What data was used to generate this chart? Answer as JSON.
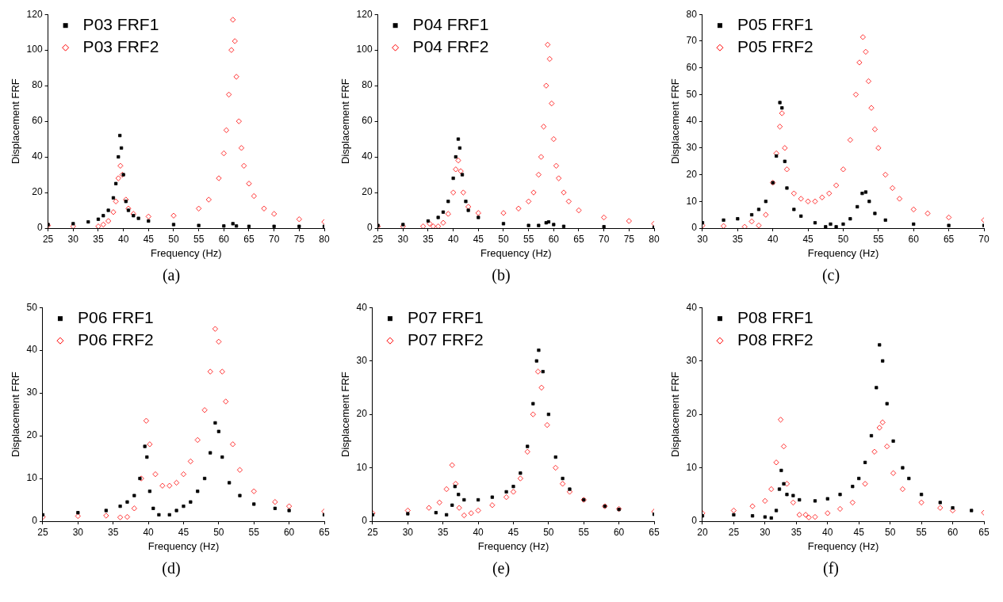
{
  "chart_data": [
    {
      "type": "scatter",
      "xlabel": "Frequency (Hz)",
      "ylabel": "Displacement FRF",
      "annotations": [
        "(a)"
      ],
      "xlim": [
        25,
        80
      ],
      "xticks": [
        25,
        30,
        35,
        40,
        45,
        50,
        55,
        60,
        65,
        70,
        75,
        80
      ],
      "ylim": [
        0,
        120
      ],
      "yticks": [
        0,
        20,
        40,
        60,
        80,
        100,
        120
      ],
      "legend": "top left",
      "grid": false,
      "series": [
        {
          "name": "P03 FRF1",
          "color": "#000000",
          "marker": "square",
          "x": [
            25,
            30,
            33,
            35,
            36,
            37,
            38,
            38.5,
            39,
            39.3,
            39.6,
            40,
            40.5,
            41,
            42,
            43,
            45,
            50,
            55,
            60,
            61.8,
            62.5,
            65,
            70,
            75,
            80
          ],
          "values": [
            2,
            2.5,
            3.5,
            5,
            7,
            10,
            17,
            25,
            40,
            52,
            45,
            30,
            15,
            10,
            7,
            5.5,
            4,
            2,
            1.5,
            1.2,
            2.5,
            1.2,
            1,
            1,
            1,
            1
          ]
        },
        {
          "name": "P03 FRF2",
          "color": "#ff0000",
          "marker": "diamond",
          "x": [
            25,
            30,
            35,
            36,
            37,
            38,
            38.5,
            39,
            39.4,
            39.8,
            40.5,
            41,
            42,
            45,
            50,
            55,
            57,
            59,
            60,
            60.5,
            61,
            61.5,
            61.8,
            62.2,
            62.5,
            63,
            63.5,
            64,
            65,
            66,
            68,
            70,
            75,
            80
          ],
          "values": [
            1.5,
            1,
            1,
            2,
            4,
            9,
            15,
            28,
            35,
            30,
            16,
            11,
            8,
            6.5,
            7,
            11,
            16,
            28,
            42,
            55,
            75,
            100,
            117,
            105,
            85,
            60,
            45,
            35,
            25,
            18,
            11,
            8,
            5,
            3.5
          ]
        }
      ]
    },
    {
      "type": "scatter",
      "xlabel": "Frequency (Hz)",
      "ylabel": "Displacement FRF",
      "annotations": [
        "(b)"
      ],
      "xlim": [
        25,
        80
      ],
      "xticks": [
        25,
        30,
        35,
        40,
        45,
        50,
        55,
        60,
        65,
        70,
        75,
        80
      ],
      "ylim": [
        0,
        120
      ],
      "yticks": [
        0,
        20,
        40,
        60,
        80,
        100,
        120
      ],
      "legend": "top left",
      "grid": false,
      "series": [
        {
          "name": "P04 FRF1",
          "color": "#000000",
          "marker": "square",
          "x": [
            25,
            30,
            35,
            37,
            38,
            39,
            40,
            40.5,
            41,
            41.3,
            41.8,
            42.5,
            43,
            45,
            50,
            55,
            57,
            58.5,
            59,
            60,
            62,
            70,
            80
          ],
          "values": [
            1.5,
            2,
            4,
            6,
            9,
            15,
            28,
            40,
            50,
            45,
            30,
            15,
            10,
            6,
            2.5,
            1.5,
            1.5,
            3,
            3.5,
            2,
            1,
            0.8,
            0.5
          ]
        },
        {
          "name": "P04 FRF2",
          "color": "#ff0000",
          "marker": "diamond",
          "x": [
            25,
            30,
            34,
            35.3,
            36,
            37,
            38,
            39,
            40,
            40.5,
            41,
            41.5,
            42,
            43,
            45,
            50,
            53,
            55,
            56,
            57,
            57.5,
            58,
            58.5,
            58.8,
            59.2,
            59.6,
            60,
            60.5,
            61,
            62,
            63,
            65,
            70,
            75,
            80
          ],
          "values": [
            1,
            1,
            1,
            2.5,
            1,
            1,
            3,
            8,
            20,
            33,
            38,
            32,
            20,
            12,
            8.5,
            8.5,
            11,
            15,
            20,
            30,
            40,
            57,
            80,
            103,
            95,
            70,
            50,
            35,
            28,
            20,
            15,
            10,
            6,
            4,
            2.5
          ]
        }
      ]
    },
    {
      "type": "scatter",
      "xlabel": "Frequency (Hz)",
      "ylabel": "Displacement FRF",
      "annotations": [
        "(c)"
      ],
      "xlim": [
        30,
        70
      ],
      "xticks": [
        30,
        35,
        40,
        45,
        50,
        55,
        60,
        65,
        70
      ],
      "ylim": [
        0,
        80
      ],
      "yticks": [
        0,
        10,
        20,
        30,
        40,
        50,
        60,
        70,
        80
      ],
      "legend": "top left",
      "grid": false,
      "series": [
        {
          "name": "P05 FRF1",
          "color": "#000000",
          "marker": "square",
          "x": [
            30,
            33,
            35,
            37,
            38,
            39,
            40,
            40.5,
            41,
            41.3,
            41.7,
            42,
            43,
            44,
            46,
            47.5,
            48.2,
            49,
            50,
            51,
            52,
            52.7,
            53.2,
            53.7,
            54.5,
            56,
            60,
            65,
            70
          ],
          "values": [
            2,
            3,
            3.5,
            5,
            7,
            10,
            17,
            27,
            47,
            45,
            25,
            15,
            7,
            4.5,
            2,
            0.5,
            1.5,
            0.5,
            1.5,
            3.5,
            8,
            13,
            13.5,
            10,
            5.5,
            3,
            1.5,
            1,
            1
          ]
        },
        {
          "name": "P05 FRF2",
          "color": "#ff0000",
          "marker": "diamond",
          "x": [
            30,
            33,
            36,
            37,
            38,
            39,
            40,
            40.5,
            41,
            41.3,
            41.7,
            42,
            43,
            44,
            45,
            46,
            47,
            48,
            49,
            50,
            51,
            51.8,
            52.3,
            52.8,
            53.2,
            53.6,
            54,
            54.5,
            55,
            56,
            57,
            58,
            60,
            62,
            65,
            70
          ],
          "values": [
            1,
            0.8,
            0.5,
            2.5,
            1,
            5,
            17,
            28,
            38,
            43,
            30,
            22,
            13,
            11,
            10,
            10,
            11.5,
            13,
            16,
            22,
            33,
            50,
            62,
            71.5,
            66,
            55,
            45,
            37,
            30,
            20,
            15,
            11,
            7,
            5.5,
            4,
            3
          ]
        }
      ]
    },
    {
      "type": "scatter",
      "xlabel": "Frequency (Hz)",
      "ylabel": "Displacement FRF",
      "annotations": [
        "(d)"
      ],
      "xlim": [
        25,
        65
      ],
      "xticks": [
        25,
        30,
        35,
        40,
        45,
        50,
        55,
        60,
        65
      ],
      "ylim": [
        0,
        50
      ],
      "yticks": [
        0,
        10,
        20,
        30,
        40,
        50
      ],
      "legend": "top left",
      "grid": false,
      "series": [
        {
          "name": "P06 FRF1",
          "color": "#000000",
          "marker": "square",
          "x": [
            25,
            30,
            34,
            36,
            37,
            38,
            38.8,
            39.5,
            39.8,
            40.2,
            40.7,
            41.5,
            43,
            44,
            45,
            46,
            47,
            48,
            48.8,
            49.5,
            50,
            50.5,
            51.5,
            53,
            55,
            58,
            60,
            65
          ],
          "values": [
            1.5,
            2,
            2.5,
            3.5,
            4.5,
            6,
            10,
            17.5,
            15,
            7,
            3,
            1.5,
            1.5,
            2.5,
            3.5,
            4.5,
            7,
            10,
            16,
            23,
            21,
            15,
            9,
            6,
            4,
            3,
            2.5,
            1.5
          ]
        },
        {
          "name": "P06 FRF2",
          "color": "#ff0000",
          "marker": "diamond",
          "x": [
            25,
            30,
            34,
            36,
            37,
            38,
            39,
            39.7,
            40.2,
            41,
            42,
            43,
            44,
            45,
            46,
            47,
            48,
            48.8,
            49.5,
            50,
            50.5,
            51,
            52,
            53,
            55,
            58,
            60,
            65
          ],
          "values": [
            1,
            1.2,
            1.3,
            0.9,
            1,
            3,
            10,
            23.5,
            18,
            11,
            8.3,
            8.3,
            9,
            11,
            14,
            19,
            26,
            35,
            45,
            42,
            35,
            28,
            18,
            12,
            7,
            4.5,
            3.5,
            2.3
          ]
        }
      ]
    },
    {
      "type": "scatter",
      "xlabel": "Frequency (Hz)",
      "ylabel": "Displacement FRF",
      "annotations": [
        "(e)"
      ],
      "xlim": [
        25,
        65
      ],
      "xticks": [
        25,
        30,
        35,
        40,
        45,
        50,
        55,
        60,
        65
      ],
      "ylim": [
        0,
        40
      ],
      "yticks": [
        0,
        10,
        20,
        30,
        40
      ],
      "legend": "top left",
      "grid": false,
      "series": [
        {
          "name": "P07 FRF1",
          "color": "#000000",
          "marker": "square",
          "x": [
            25,
            30,
            34,
            35.5,
            36.3,
            36.7,
            37.2,
            38,
            40,
            42,
            44,
            45,
            46,
            47,
            47.8,
            48.3,
            48.6,
            49.2,
            50,
            51,
            52,
            53,
            55,
            58,
            60,
            65
          ],
          "values": [
            1.2,
            1.4,
            1.6,
            1.2,
            3,
            6.5,
            5,
            4,
            4,
            4.5,
            5.5,
            6.5,
            9,
            14,
            22,
            30,
            32,
            28,
            20,
            12,
            8,
            6,
            4,
            2.8,
            2.2,
            1.3
          ]
        },
        {
          "name": "P07 FRF2",
          "color": "#ff0000",
          "marker": "diamond",
          "x": [
            25,
            30,
            33,
            34.5,
            35.5,
            36.3,
            36.8,
            37.3,
            38,
            39,
            40,
            42,
            44,
            45,
            46,
            47,
            47.8,
            48.5,
            49,
            49.8,
            51,
            52,
            53,
            55,
            58,
            60,
            65
          ],
          "values": [
            1.5,
            2,
            2.5,
            3.5,
            6,
            10.5,
            7,
            2.5,
            1.1,
            1.5,
            2,
            3,
            4.5,
            5.5,
            8,
            13,
            20,
            28,
            25,
            18,
            10,
            7,
            5.5,
            4,
            2.8,
            2.3,
            1.8
          ]
        }
      ]
    },
    {
      "type": "scatter",
      "xlabel": "Frequency (Hz)",
      "ylabel": "Displacement FRF",
      "annotations": [
        "(f)"
      ],
      "xlim": [
        20,
        65
      ],
      "xticks": [
        20,
        25,
        30,
        35,
        40,
        45,
        50,
        55,
        60,
        65
      ],
      "ylim": [
        0,
        40
      ],
      "yticks": [
        0,
        10,
        20,
        30,
        40
      ],
      "legend": "top left",
      "grid": false,
      "series": [
        {
          "name": "P08 FRF1",
          "color": "#000000",
          "marker": "square",
          "x": [
            20,
            25,
            28,
            30,
            31,
            31.8,
            32.3,
            32.6,
            33,
            33.5,
            34.5,
            35.5,
            38,
            40,
            42,
            44,
            45,
            46,
            47,
            47.8,
            48.3,
            48.8,
            49.5,
            50.5,
            52,
            53,
            55,
            58,
            60,
            63
          ],
          "values": [
            1,
            1.2,
            1,
            0.8,
            0.6,
            2,
            6,
            9.5,
            7,
            5,
            4.8,
            4,
            3.8,
            4.2,
            5,
            6.5,
            8,
            11,
            16,
            25,
            33,
            30,
            22,
            15,
            10,
            8,
            5,
            3.5,
            2.5,
            2
          ]
        },
        {
          "name": "P08 FRF2",
          "color": "#ff0000",
          "marker": "diamond",
          "x": [
            20,
            25,
            28,
            30,
            31,
            31.8,
            32.5,
            33,
            33.5,
            34.5,
            35.5,
            36.5,
            37,
            38,
            40,
            42,
            44,
            46,
            47.5,
            48.3,
            48.8,
            49.5,
            50.5,
            52,
            55,
            58,
            60,
            65
          ],
          "values": [
            1.5,
            2,
            2.8,
            3.8,
            6,
            11,
            19,
            14,
            7,
            3.5,
            1.2,
            1.2,
            0.7,
            0.8,
            1.5,
            2.3,
            3.5,
            7,
            13,
            17.5,
            18.5,
            14,
            9,
            6,
            3.5,
            2.5,
            2,
            1.6
          ]
        }
      ]
    }
  ]
}
